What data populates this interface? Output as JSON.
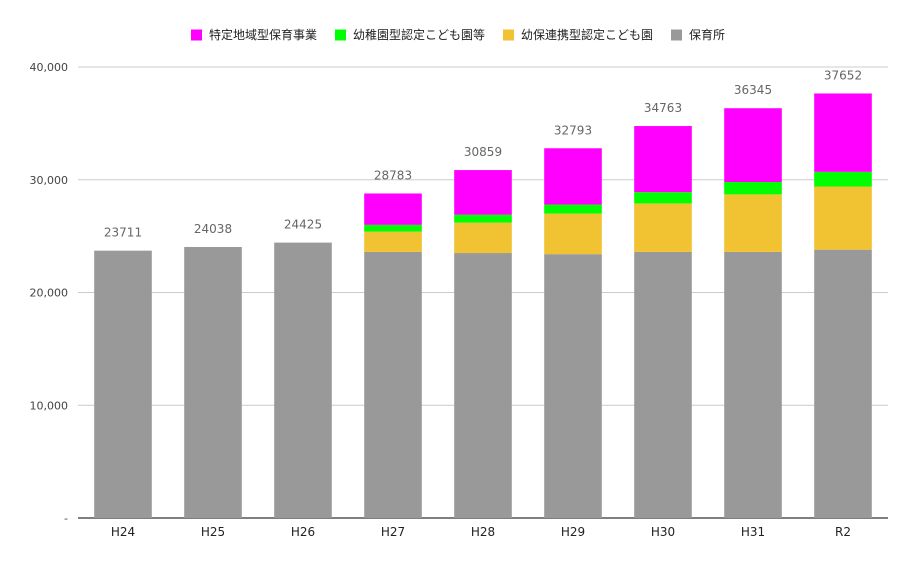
{
  "chart_data": {
    "type": "bar",
    "stacked": true,
    "title": "",
    "xlabel": "",
    "ylabel": "",
    "ylim": [
      0,
      40000
    ],
    "yticks": [
      0,
      10000,
      20000,
      30000,
      40000
    ],
    "ytick_labels": [
      "-",
      "10,000",
      "20,000",
      "30,000",
      "40,000"
    ],
    "grid": true,
    "legend_position": "top",
    "categories": [
      "H24",
      "H25",
      "H26",
      "H27",
      "H28",
      "H29",
      "H30",
      "H31",
      "R2"
    ],
    "series": [
      {
        "name": "保育所",
        "color": "#999999",
        "values": [
          23711,
          24038,
          24425,
          23600,
          23500,
          23400,
          23600,
          23600,
          23800
        ]
      },
      {
        "name": "幼保連携型認定こども園",
        "color": "#f1c232",
        "values": [
          0,
          0,
          0,
          1800,
          2700,
          3600,
          4300,
          5100,
          5600
        ]
      },
      {
        "name": "幼稚園型認定こども園等",
        "color": "#00ff00",
        "values": [
          0,
          0,
          0,
          600,
          700,
          800,
          1000,
          1100,
          1300
        ]
      },
      {
        "name": "特定地域型保育事業",
        "color": "#ff00ff",
        "values": [
          0,
          0,
          0,
          2783,
          3959,
          4993,
          5863,
          6545,
          6952
        ]
      }
    ],
    "totals": [
      "23711",
      "24038",
      "24425",
      "28783",
      "30859",
      "32793",
      "34763",
      "36345",
      "37652"
    ],
    "legend_order": [
      "特定地域型保育事業",
      "幼稚園型認定こども園等",
      "幼保連携型認定こども園",
      "保育所"
    ]
  }
}
